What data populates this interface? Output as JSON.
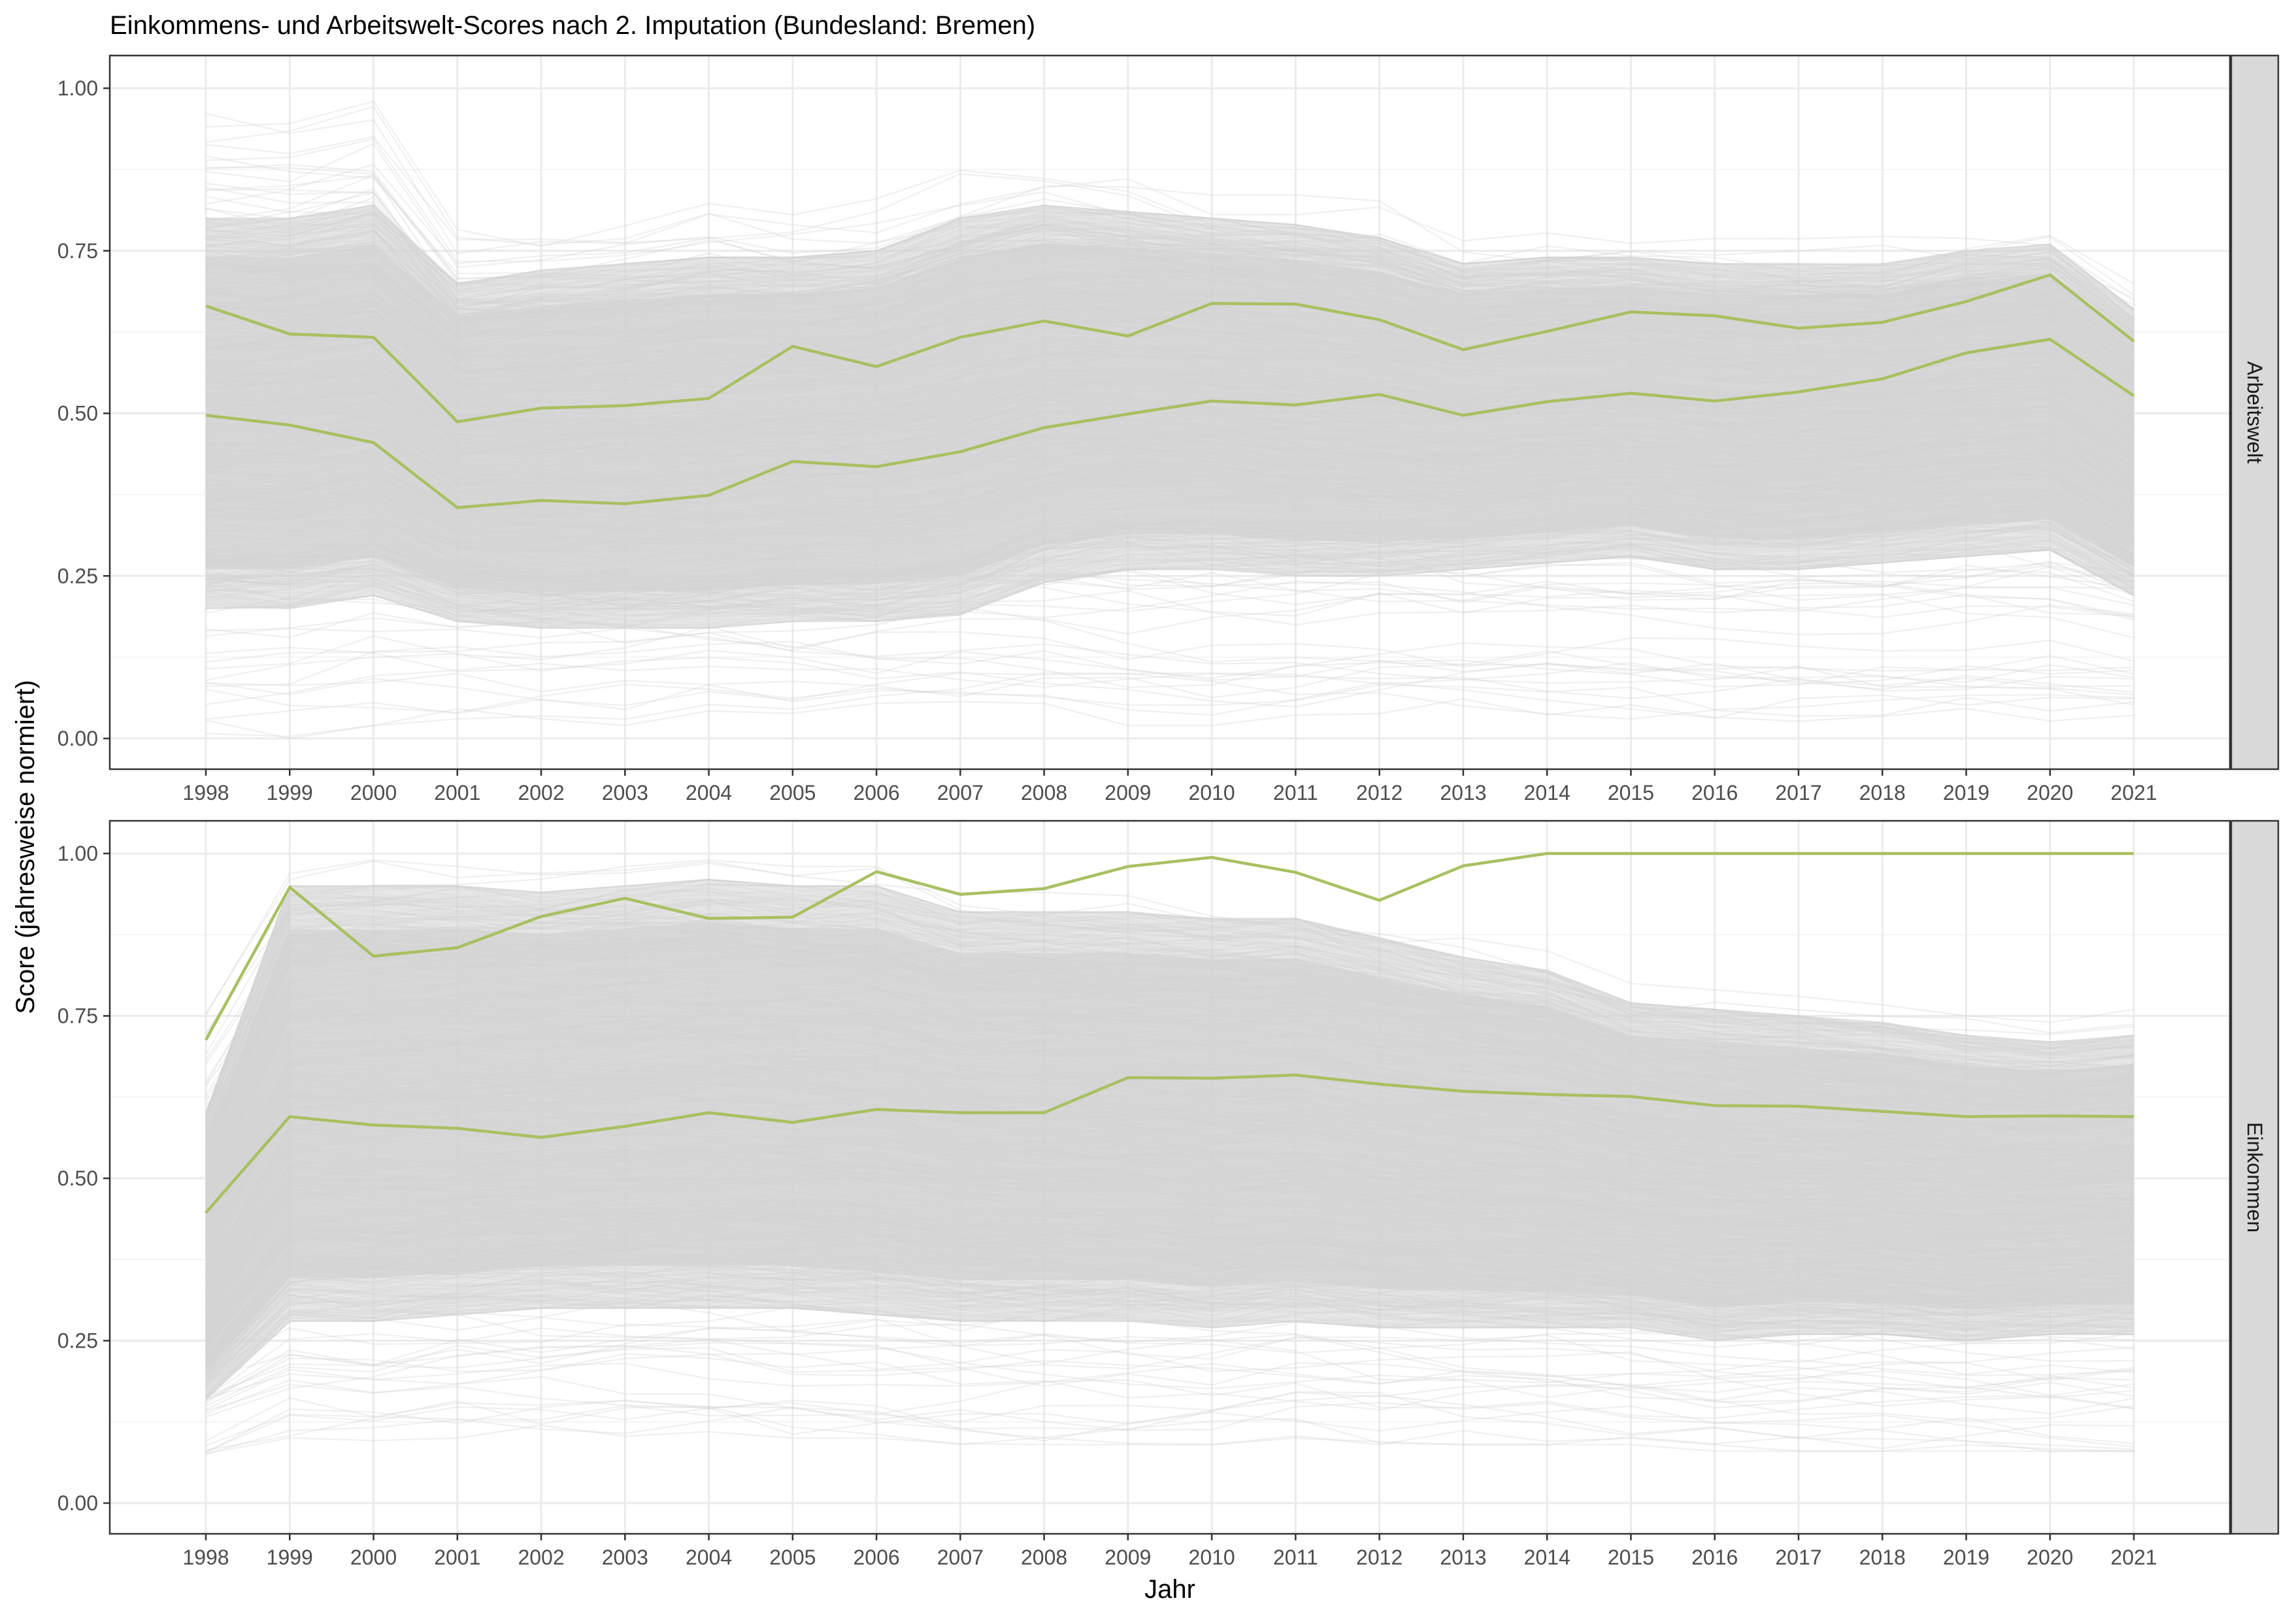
{
  "chart_data": {
    "type": "line",
    "title": "Einkommens- und Arbeitswelt-Scores nach 2. Imputation (Bundesland: Bremen)",
    "xlabel": "Jahr",
    "ylabel": "Score (jahresweise normiert)",
    "x": [
      1998,
      1999,
      2000,
      2001,
      2002,
      2003,
      2004,
      2005,
      2006,
      2007,
      2008,
      2009,
      2010,
      2011,
      2012,
      2013,
      2014,
      2015,
      2016,
      2017,
      2018,
      2019,
      2020,
      2021
    ],
    "x_tick_labels": [
      "1998",
      "1999",
      "2000",
      "2001",
      "2002",
      "2003",
      "2004",
      "2005",
      "2006",
      "2007",
      "2008",
      "2009",
      "2010",
      "2011",
      "2012",
      "2013",
      "2014",
      "2015",
      "2016",
      "2017",
      "2018",
      "2019",
      "2020",
      "2021"
    ],
    "ylim": [
      0,
      1
    ],
    "y_ticks": [
      0,
      0.25,
      0.5,
      0.75,
      1
    ],
    "y_tick_labels": [
      "0.00",
      "0.25",
      "0.50",
      "0.75",
      "1.00"
    ],
    "grid": true,
    "colors": {
      "background_lines": "#d3d3d3",
      "highlight": "#a8c060",
      "strip_fill": "#d9d9d9",
      "panel_border": "#333333",
      "grid_major": "#ebebeb",
      "grid_minor": "#f5f5f5"
    },
    "panels": [
      {
        "strip_label": "Arbeitswelt",
        "band": {
          "upper": [
            0.98,
            0.98,
            1.0,
            0.8,
            0.8,
            0.81,
            0.83,
            0.82,
            0.83,
            0.88,
            0.9,
            0.89,
            0.86,
            0.85,
            0.84,
            0.78,
            0.79,
            0.79,
            0.78,
            0.78,
            0.78,
            0.8,
            0.8,
            0.72
          ],
          "core_upper": [
            0.8,
            0.8,
            0.82,
            0.7,
            0.72,
            0.73,
            0.74,
            0.74,
            0.75,
            0.8,
            0.82,
            0.81,
            0.8,
            0.79,
            0.77,
            0.73,
            0.74,
            0.74,
            0.73,
            0.73,
            0.73,
            0.75,
            0.76,
            0.66
          ],
          "core_lower": [
            0.2,
            0.2,
            0.22,
            0.18,
            0.17,
            0.17,
            0.17,
            0.18,
            0.18,
            0.19,
            0.24,
            0.26,
            0.26,
            0.25,
            0.25,
            0.26,
            0.27,
            0.28,
            0.26,
            0.26,
            0.27,
            0.28,
            0.29,
            0.22
          ],
          "lower": [
            0.0,
            0.0,
            0.02,
            0.03,
            0.03,
            0.02,
            0.03,
            0.03,
            0.03,
            0.03,
            0.03,
            0.02,
            0.02,
            0.02,
            0.03,
            0.03,
            0.03,
            0.03,
            0.02,
            0.02,
            0.02,
            0.02,
            0.02,
            0.02
          ]
        },
        "series": [
          {
            "values": [
              0.665,
              0.622,
              0.617,
              0.487,
              0.508,
              0.512,
              0.523,
              0.603,
              0.572,
              0.617,
              0.642,
              0.619,
              0.669,
              0.668,
              0.644,
              0.598,
              0.626,
              0.656,
              0.65,
              0.631,
              0.64,
              0.672,
              0.713,
              0.611
            ]
          },
          {
            "values": [
              0.497,
              0.482,
              0.455,
              0.355,
              0.366,
              0.361,
              0.374,
              0.426,
              0.418,
              0.441,
              0.478,
              0.499,
              0.519,
              0.513,
              0.529,
              0.497,
              0.518,
              0.531,
              0.519,
              0.533,
              0.553,
              0.593,
              0.614,
              0.527
            ]
          }
        ]
      },
      {
        "strip_label": "Einkommen",
        "band": {
          "upper": [
            0.76,
            0.99,
            0.99,
            0.98,
            0.97,
            0.98,
            0.99,
            0.98,
            0.98,
            0.94,
            0.94,
            0.94,
            0.93,
            0.92,
            0.89,
            0.87,
            0.85,
            0.8,
            0.79,
            0.78,
            0.77,
            0.75,
            0.74,
            0.76
          ],
          "core_upper": [
            0.6,
            0.95,
            0.95,
            0.95,
            0.94,
            0.95,
            0.96,
            0.95,
            0.95,
            0.91,
            0.91,
            0.91,
            0.9,
            0.9,
            0.87,
            0.84,
            0.82,
            0.77,
            0.76,
            0.75,
            0.74,
            0.72,
            0.71,
            0.72
          ],
          "core_lower": [
            0.16,
            0.28,
            0.28,
            0.29,
            0.3,
            0.3,
            0.3,
            0.3,
            0.29,
            0.28,
            0.28,
            0.28,
            0.27,
            0.28,
            0.27,
            0.27,
            0.27,
            0.27,
            0.25,
            0.26,
            0.26,
            0.25,
            0.26,
            0.26
          ],
          "lower": [
            0.06,
            0.09,
            0.09,
            0.1,
            0.1,
            0.1,
            0.11,
            0.1,
            0.1,
            0.09,
            0.09,
            0.09,
            0.09,
            0.1,
            0.09,
            0.09,
            0.09,
            0.09,
            0.08,
            0.08,
            0.08,
            0.08,
            0.08,
            0.08
          ]
        },
        "series": [
          {
            "values": [
              0.713,
              0.948,
              0.842,
              0.855,
              0.903,
              0.931,
              0.9,
              0.902,
              0.972,
              0.937,
              0.946,
              0.98,
              0.994,
              0.971,
              0.928,
              0.981,
              1.0,
              1.0,
              1.0,
              1.0,
              1.0,
              1.0,
              1.0,
              1.0
            ]
          },
          {
            "values": [
              0.447,
              0.595,
              0.582,
              0.577,
              0.563,
              0.58,
              0.601,
              0.586,
              0.606,
              0.601,
              0.601,
              0.655,
              0.654,
              0.659,
              0.645,
              0.634,
              0.629,
              0.626,
              0.612,
              0.611,
              0.603,
              0.595,
              0.596,
              0.595
            ]
          }
        ]
      }
    ]
  }
}
